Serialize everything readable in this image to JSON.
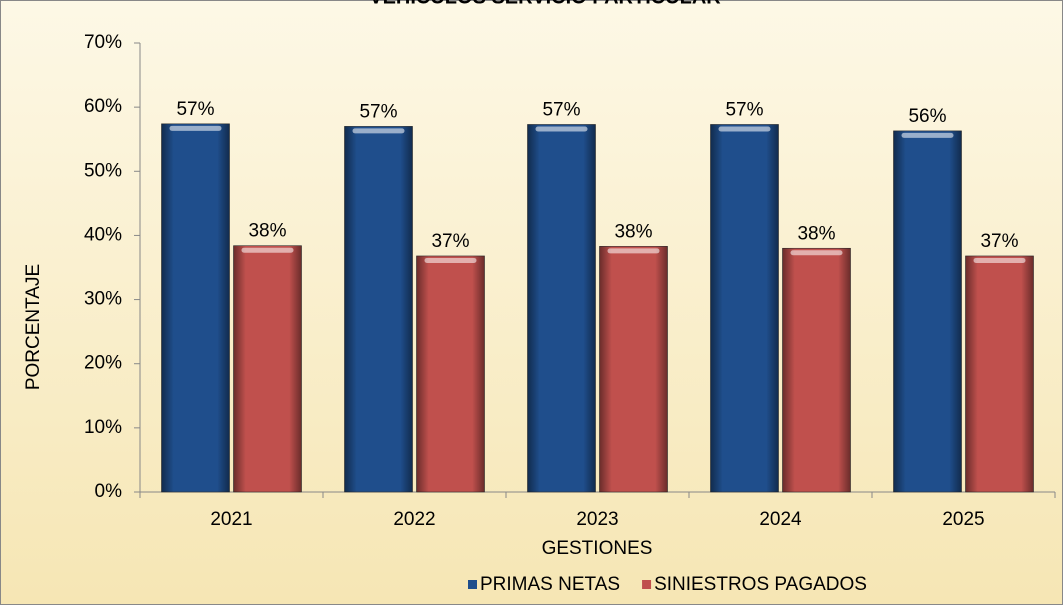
{
  "chart_data": {
    "type": "bar",
    "title": "VEHÍCULOS SERVICIO PARTICULAR",
    "x_label": "GESTIONES",
    "y_label": "PORCENTAJE",
    "categories": [
      "2021",
      "2022",
      "2023",
      "2024",
      "2025"
    ],
    "series": [
      {
        "name": "PRIMAS NETAS",
        "color": "#1f4e8c",
        "values": [
          57.4,
          57.0,
          57.3,
          57.3,
          56.3
        ],
        "value_labels": [
          "57%",
          "57%",
          "57%",
          "57%",
          "56%"
        ]
      },
      {
        "name": "SINIESTROS PAGADOS",
        "color": "#c0504d",
        "values": [
          38.4,
          36.8,
          38.3,
          38.0,
          36.8
        ],
        "value_labels": [
          "38%",
          "37%",
          "38%",
          "38%",
          "37%"
        ]
      }
    ],
    "ylim": [
      0,
      70
    ],
    "yticks": [
      {
        "value": 0,
        "label": "0%"
      },
      {
        "value": 10,
        "label": "10%"
      },
      {
        "value": 20,
        "label": "20%"
      },
      {
        "value": 30,
        "label": "30%"
      },
      {
        "value": 40,
        "label": "40%"
      },
      {
        "value": 50,
        "label": "50%"
      },
      {
        "value": 60,
        "label": "60%"
      },
      {
        "value": 70,
        "label": "70%"
      }
    ],
    "grid": false,
    "legend": "bottom"
  }
}
